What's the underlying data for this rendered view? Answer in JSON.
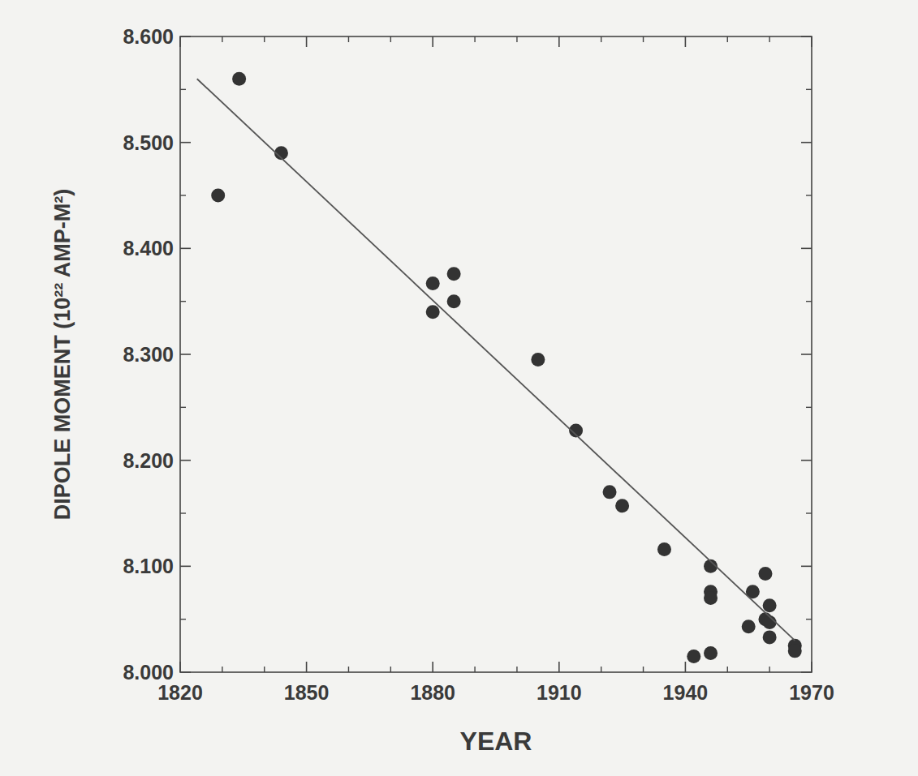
{
  "chart_data": {
    "type": "scatter",
    "x_label": "YEAR",
    "y_label": "DIPOLE MOMENT (10²² AMP-M²)",
    "xlim": [
      1820,
      1970
    ],
    "xticks": [
      1820,
      1850,
      1880,
      1910,
      1940,
      1970
    ],
    "ylim": [
      8.0,
      8.6
    ],
    "yticks": [
      {
        "value": 8.0,
        "label": "8.000"
      },
      {
        "value": 8.1,
        "label": "8.100"
      },
      {
        "value": 8.2,
        "label": "8.200"
      },
      {
        "value": 8.3,
        "label": "8.300"
      },
      {
        "value": 8.4,
        "label": "8.400"
      },
      {
        "value": 8.5,
        "label": "8.500"
      },
      {
        "value": 8.6,
        "label": "8.600"
      }
    ],
    "grid": false,
    "series": [
      {
        "type": "scatter",
        "marker": "circle",
        "color": "#333333",
        "x": [
          1829,
          1834,
          1844,
          1880,
          1880,
          1885,
          1885,
          1905,
          1914,
          1922,
          1925,
          1935,
          1942,
          1946,
          1946,
          1946,
          1946,
          1955,
          1956,
          1959,
          1959,
          1960,
          1960,
          1960,
          1966,
          1966
        ],
        "values": [
          8.45,
          8.56,
          8.49,
          8.34,
          8.367,
          8.35,
          8.376,
          8.295,
          8.228,
          8.17,
          8.157,
          8.116,
          8.015,
          8.1,
          8.076,
          8.07,
          8.018,
          8.043,
          8.076,
          8.093,
          8.05,
          8.063,
          8.047,
          8.033,
          8.025,
          8.02
        ]
      },
      {
        "type": "line",
        "line_style": "solid",
        "color": "#555555",
        "x": [
          1824,
          1966
        ],
        "values": [
          8.56,
          8.03
        ]
      }
    ]
  }
}
